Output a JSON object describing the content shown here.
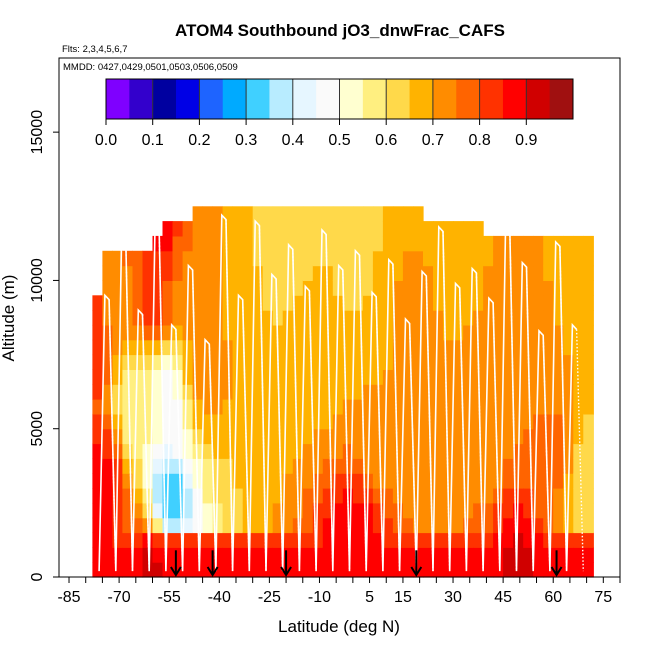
{
  "chart_data": {
    "type": "heatmap",
    "title": "ATOM4 Southbound jO3_dnwFrac_CAFS",
    "flights_note": "Flts: 2,3,4,5,6,7",
    "dates_note": "MMDD: 0427,0429,0501,0503,0506,0509",
    "xlabel": "Latitude (deg N)",
    "ylabel": "Altitude (m)",
    "xlim": [
      -88,
      80
    ],
    "ylim": [
      0,
      17500
    ],
    "x_ticks": [
      -85,
      -70,
      -55,
      -40,
      -25,
      -10,
      5,
      15,
      30,
      45,
      60,
      75
    ],
    "x_tick_labels": [
      "-85",
      "-70",
      "-55",
      "-40",
      "-25",
      "-10",
      "5",
      "15",
      "30",
      "45",
      "60",
      "75"
    ],
    "x_minor_step": 5,
    "y_ticks": [
      0,
      5000,
      10000,
      15000
    ],
    "y_tick_labels": [
      "0",
      "5000",
      "10000",
      "15000"
    ],
    "colorbar": {
      "min": 0.0,
      "max": 1.0,
      "labels": [
        "0.0",
        "0.1",
        "0.2",
        "0.3",
        "0.4",
        "0.5",
        "0.6",
        "0.7",
        "0.8",
        "0.9"
      ],
      "colors": [
        "#7f00ff",
        "#3300cc",
        "#0000a0",
        "#0000e6",
        "#1e64ff",
        "#00aaff",
        "#40d0ff",
        "#b8ecff",
        "#e6f6ff",
        "#fafafa",
        "#ffffd0",
        "#ffef80",
        "#ffd94a",
        "#ffb300",
        "#ff8c00",
        "#ff6400",
        "#ff3200",
        "#ff0000",
        "#d00000",
        "#a01010"
      ]
    },
    "data_extent": {
      "lat_min": -78,
      "lat_max": 71,
      "alt_max": 12500
    },
    "surface_arrows_lat": [
      -53,
      -42,
      -20,
      19,
      61
    ],
    "profile_tops_m": [
      9500,
      11500,
      9000,
      11800,
      8500,
      10500,
      8000,
      12200,
      9500,
      12000,
      10200,
      11200,
      9800,
      11700,
      10500,
      11000,
      9600,
      10700,
      8700,
      10300,
      11800,
      9900,
      10400,
      9400,
      11900,
      10600,
      8300,
      11300,
      8500
    ],
    "field_description_lat_alt_value": [
      [
        -78,
        8000,
        0.84
      ],
      [
        -75,
        3000,
        0.88
      ],
      [
        -70,
        9000,
        0.72
      ],
      [
        -65,
        6000,
        0.55
      ],
      [
        -60,
        9500,
        0.82
      ],
      [
        -57,
        11500,
        0.86
      ],
      [
        -55,
        6000,
        0.48
      ],
      [
        -55,
        2500,
        0.3
      ],
      [
        -50,
        10000,
        0.74
      ],
      [
        -45,
        7000,
        0.73
      ],
      [
        -40,
        12000,
        0.7
      ],
      [
        -30,
        11000,
        0.65
      ],
      [
        -20,
        12000,
        0.6
      ],
      [
        -10,
        8000,
        0.68
      ],
      [
        0,
        11000,
        0.63
      ],
      [
        10,
        6000,
        0.7
      ],
      [
        20,
        9000,
        0.71
      ],
      [
        30,
        11500,
        0.66
      ],
      [
        40,
        5000,
        0.72
      ],
      [
        50,
        9000,
        0.73
      ],
      [
        60,
        4000,
        0.76
      ],
      [
        67,
        11000,
        0.67
      ],
      [
        70,
        3000,
        0.6
      ],
      [
        0,
        300,
        0.9
      ],
      [
        -60,
        300,
        0.92
      ],
      [
        50,
        300,
        0.91
      ]
    ]
  }
}
